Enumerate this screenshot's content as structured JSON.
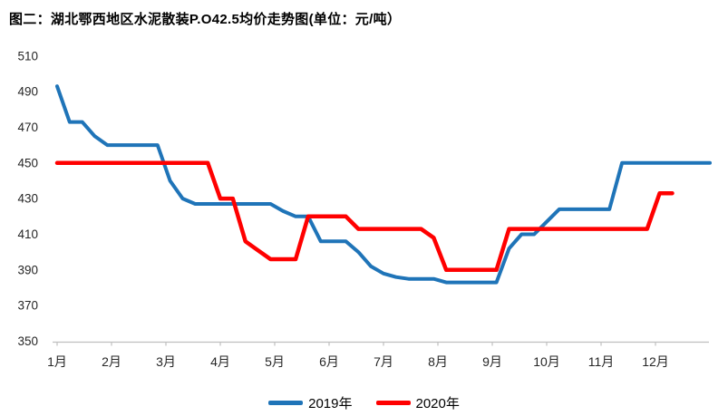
{
  "title": "图二：湖北鄂西地区水泥散装P.O42.5均价走势图(单位：元/吨）",
  "chart_data": {
    "type": "line",
    "title": "湖北鄂西地区水泥散装P.O42.5均价走势图",
    "unit": "元/吨",
    "grid": false,
    "legend_position": "bottom",
    "x_axis": {
      "labels": [
        "1月",
        "2月",
        "3月",
        "4月",
        "5月",
        "6月",
        "7月",
        "8月",
        "9月",
        "10月",
        "11月",
        "12月"
      ],
      "note": "weekly data points spread across the year"
    },
    "y_axis": {
      "min": 350,
      "max": 510,
      "step": 20,
      "ticks": [
        350,
        370,
        390,
        410,
        430,
        450,
        470,
        490,
        510
      ]
    },
    "axis_color": "#BFBFBF",
    "label_color": "#262626",
    "series": [
      {
        "name": "2019年",
        "color": "#1F74B8",
        "stroke_width": 4,
        "weekly_values": [
          493,
          473,
          473,
          465,
          460,
          460,
          460,
          460,
          460,
          440,
          430,
          427,
          427,
          427,
          427,
          427,
          427,
          427,
          423,
          420,
          420,
          406,
          406,
          406,
          400,
          392,
          388,
          386,
          385,
          385,
          385,
          383,
          383,
          383,
          383,
          383,
          402,
          410,
          410,
          417,
          424,
          424,
          424,
          424,
          424,
          450,
          450,
          450,
          450,
          450,
          450,
          450,
          450
        ]
      },
      {
        "name": "2020年",
        "color": "#FF0000",
        "stroke_width": 4.5,
        "weekly_values": [
          450,
          450,
          450,
          450,
          450,
          450,
          450,
          450,
          450,
          450,
          450,
          450,
          450,
          430,
          430,
          406,
          401,
          396,
          396,
          396,
          420,
          420,
          420,
          420,
          413,
          413,
          413,
          413,
          413,
          413,
          408,
          390,
          390,
          390,
          390,
          390,
          413,
          413,
          413,
          413,
          413,
          413,
          413,
          413,
          413,
          413,
          413,
          413,
          433,
          433
        ]
      }
    ]
  }
}
